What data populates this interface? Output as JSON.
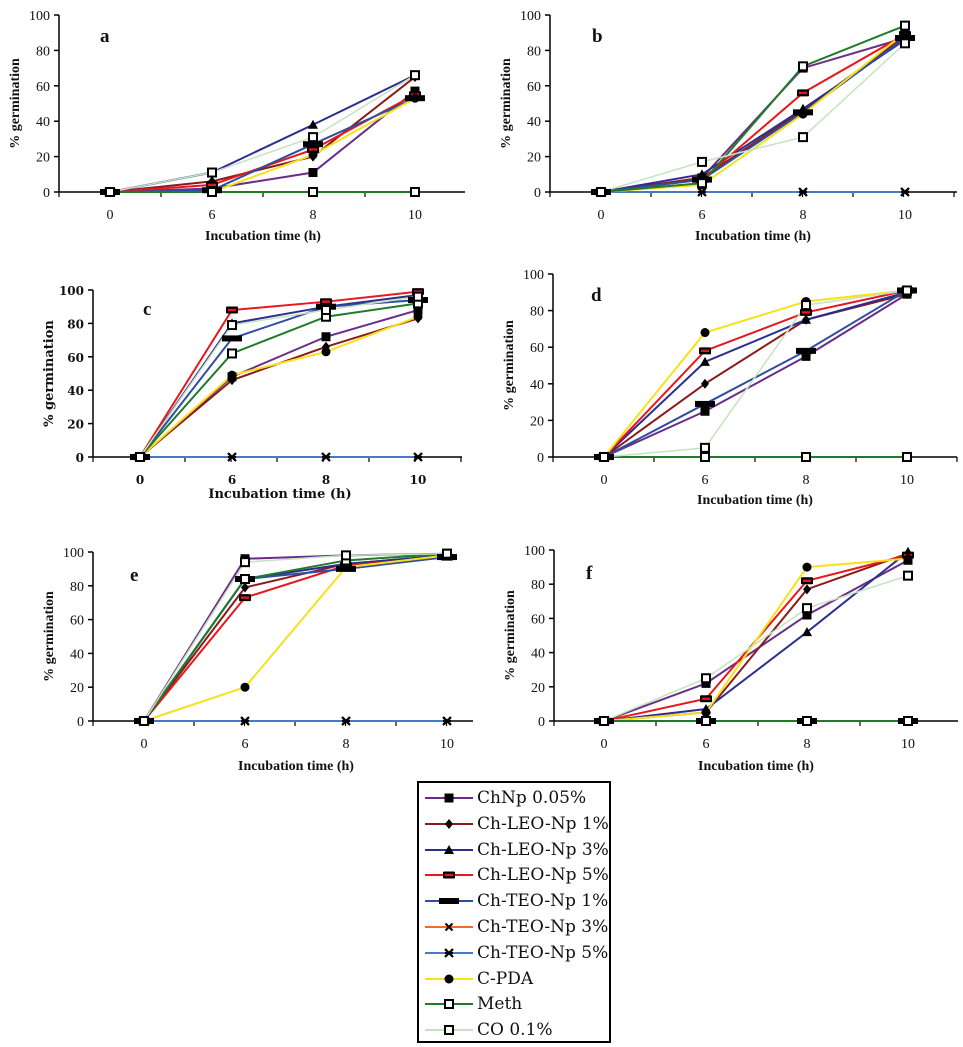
{
  "chart_data": {
    "type": "line",
    "series_styles": [
      {
        "name": "ChNp 0.05%",
        "color": "#6a2c8a",
        "marker": "square"
      },
      {
        "name": "Ch-LEO-Np 1%",
        "color": "#8b1a1a",
        "marker": "diamond"
      },
      {
        "name": "Ch-LEO-Np 3%",
        "color": "#2a2f8f",
        "marker": "triangle"
      },
      {
        "name": "Ch-LEO-Np 5%",
        "color": "#e8171c",
        "marker": "dash"
      },
      {
        "name": "Ch-TEO-Np 1%",
        "color": "#2f4ea0",
        "marker": "bar"
      },
      {
        "name": "Ch-TEO-Np 3%",
        "color": "#f06a2a",
        "marker": "x"
      },
      {
        "name": "Ch-TEO-Np 5%",
        "color": "#4a78c8",
        "marker": "star"
      },
      {
        "name": "C-PDA",
        "color": "#f5e21a",
        "marker": "circle"
      },
      {
        "name": "Meth",
        "color": "#1f7a2a",
        "marker": "open-square"
      },
      {
        "name": "CO 0.1%",
        "color": "#c5e3c0",
        "marker": "open-square"
      }
    ],
    "panels": [
      {
        "label": "a",
        "xlabel": "Incubation time (h)",
        "ylabel": "% germination",
        "categories": [
          "0",
          "6",
          "8",
          "10"
        ],
        "yticks": [
          "0",
          "20",
          "40",
          "60",
          "80",
          "100"
        ],
        "ylim": [
          0,
          100
        ],
        "series": [
          {
            "name": "ChNp 0.05%",
            "values": [
              0,
              2,
              11,
              57
            ]
          },
          {
            "name": "Ch-LEO-Np 1%",
            "values": [
              0,
              6,
              20,
              65
            ]
          },
          {
            "name": "Ch-LEO-Np 3%",
            "values": [
              0,
              11,
              38,
              66
            ]
          },
          {
            "name": "Ch-LEO-Np 5%",
            "values": [
              0,
              4,
              24,
              55
            ]
          },
          {
            "name": "Ch-TEO-Np 1%",
            "values": [
              0,
              1,
              27,
              53
            ]
          },
          {
            "name": "Ch-TEO-Np 3%",
            "values": [
              0,
              0,
              0,
              0
            ]
          },
          {
            "name": "Ch-TEO-Np 5%",
            "values": [
              0,
              0,
              0,
              0
            ]
          },
          {
            "name": "C-PDA",
            "values": [
              0,
              0,
              21,
              53
            ]
          },
          {
            "name": "Meth",
            "values": [
              0,
              0,
              0,
              0
            ]
          },
          {
            "name": "CO 0.1%",
            "values": [
              0,
              11,
              31,
              66
            ]
          }
        ]
      },
      {
        "label": "b",
        "xlabel": "Incubation time (h)",
        "ylabel": "% germination",
        "categories": [
          "0",
          "6",
          "8",
          "10"
        ],
        "yticks": [
          "0",
          "20",
          "40",
          "60",
          "80",
          "100"
        ],
        "ylim": [
          0,
          100
        ],
        "series": [
          {
            "name": "ChNp 0.05%",
            "values": [
              0,
              8,
              70,
              87
            ]
          },
          {
            "name": "Ch-LEO-Np 1%",
            "values": [
              0,
              8,
              46,
              88
            ]
          },
          {
            "name": "Ch-LEO-Np 3%",
            "values": [
              0,
              10,
              47,
              86
            ]
          },
          {
            "name": "Ch-LEO-Np 5%",
            "values": [
              0,
              7,
              56,
              89
            ]
          },
          {
            "name": "Ch-TEO-Np 1%",
            "values": [
              0,
              7,
              45,
              87
            ]
          },
          {
            "name": "Ch-TEO-Np 3%",
            "values": [
              0,
              0,
              0,
              0
            ]
          },
          {
            "name": "Ch-TEO-Np 5%",
            "values": [
              0,
              0,
              0,
              0
            ]
          },
          {
            "name": "C-PDA",
            "values": [
              0,
              4,
              44,
              90
            ]
          },
          {
            "name": "Meth",
            "values": [
              0,
              5,
              71,
              94
            ]
          },
          {
            "name": "CO 0.1%",
            "values": [
              0,
              17,
              31,
              84
            ]
          }
        ]
      },
      {
        "label": "c",
        "xlabel": "Incubation time (h)",
        "ylabel": "% germination",
        "categories": [
          "0",
          "6",
          "8",
          "10"
        ],
        "yticks": [
          "0",
          "20",
          "40",
          "60",
          "80",
          "100"
        ],
        "ylim": [
          0,
          100
        ],
        "series": [
          {
            "name": "ChNp 0.05%",
            "values": [
              0,
              48,
              72,
              88
            ]
          },
          {
            "name": "Ch-LEO-Np 1%",
            "values": [
              0,
              46,
              66,
              83
            ]
          },
          {
            "name": "Ch-LEO-Np 3%",
            "values": [
              0,
              80,
              90,
              97
            ]
          },
          {
            "name": "Ch-LEO-Np 5%",
            "values": [
              0,
              88,
              93,
              99
            ]
          },
          {
            "name": "Ch-TEO-Np 1%",
            "values": [
              0,
              71,
              90,
              94
            ]
          },
          {
            "name": "Ch-TEO-Np 3%",
            "values": [
              0,
              0,
              0,
              0
            ]
          },
          {
            "name": "Ch-TEO-Np 5%",
            "values": [
              0,
              0,
              0,
              0
            ]
          },
          {
            "name": "C-PDA",
            "values": [
              0,
              49,
              63,
              84
            ]
          },
          {
            "name": "Meth",
            "values": [
              0,
              62,
              84,
              92
            ]
          },
          {
            "name": "CO 0.1%",
            "values": [
              0,
              79,
              88,
              96
            ]
          }
        ]
      },
      {
        "label": "d",
        "xlabel": "Incubation time (h)",
        "ylabel": "% germination",
        "categories": [
          "0",
          "6",
          "8",
          "10"
        ],
        "yticks": [
          "0",
          "20",
          "40",
          "60",
          "80",
          "100"
        ],
        "ylim": [
          0,
          100
        ],
        "series": [
          {
            "name": "ChNp 0.05%",
            "values": [
              0,
              25,
              55,
              89
            ]
          },
          {
            "name": "Ch-LEO-Np 1%",
            "values": [
              0,
              40,
              75,
              89
            ]
          },
          {
            "name": "Ch-LEO-Np 3%",
            "values": [
              0,
              52,
              75,
              90
            ]
          },
          {
            "name": "Ch-LEO-Np 5%",
            "values": [
              0,
              58,
              79,
              91
            ]
          },
          {
            "name": "Ch-TEO-Np 1%",
            "values": [
              0,
              29,
              58,
              91
            ]
          },
          {
            "name": "Ch-TEO-Np 3%",
            "values": [
              0,
              0,
              0,
              0
            ]
          },
          {
            "name": "Ch-TEO-Np 5%",
            "values": [
              0,
              0,
              0,
              0
            ]
          },
          {
            "name": "C-PDA",
            "values": [
              0,
              68,
              85,
              91
            ]
          },
          {
            "name": "Meth",
            "values": [
              0,
              0,
              0,
              0
            ]
          },
          {
            "name": "CO 0.1%",
            "values": [
              0,
              5,
              83,
              91
            ]
          }
        ]
      },
      {
        "label": "e",
        "xlabel": "Incubation time (h)",
        "ylabel": "% germination",
        "categories": [
          "0",
          "6",
          "8",
          "10"
        ],
        "yticks": [
          "0",
          "20",
          "40",
          "60",
          "80",
          "100"
        ],
        "ylim": [
          0,
          100
        ],
        "series": [
          {
            "name": "ChNp 0.05%",
            "values": [
              0,
              96,
              98,
              99
            ]
          },
          {
            "name": "Ch-LEO-Np 1%",
            "values": [
              0,
              79,
              93,
              98
            ]
          },
          {
            "name": "Ch-LEO-Np 3%",
            "values": [
              0,
              84,
              93,
              98
            ]
          },
          {
            "name": "Ch-LEO-Np 5%",
            "values": [
              0,
              73,
              92,
              97
            ]
          },
          {
            "name": "Ch-TEO-Np 1%",
            "values": [
              0,
              84,
              90,
              97
            ]
          },
          {
            "name": "Ch-TEO-Np 3%",
            "values": [
              0,
              0,
              0,
              0
            ]
          },
          {
            "name": "Ch-TEO-Np 5%",
            "values": [
              0,
              0,
              0,
              0
            ]
          },
          {
            "name": "C-PDA",
            "values": [
              0,
              20,
              91,
              98
            ]
          },
          {
            "name": "Meth",
            "values": [
              0,
              84,
              95,
              99
            ]
          },
          {
            "name": "CO 0.1%",
            "values": [
              0,
              94,
              98,
              99
            ]
          }
        ]
      },
      {
        "label": "f",
        "xlabel": "Incubation time (h)",
        "ylabel": "% germination",
        "categories": [
          "0",
          "6",
          "8",
          "10"
        ],
        "yticks": [
          "0",
          "20",
          "40",
          "60",
          "80",
          "100"
        ],
        "ylim": [
          0,
          100
        ],
        "series": [
          {
            "name": "ChNp 0.05%",
            "values": [
              0,
              22,
              62,
              94
            ]
          },
          {
            "name": "Ch-LEO-Np 1%",
            "values": [
              0,
              5,
              77,
              98
            ]
          },
          {
            "name": "Ch-LEO-Np 3%",
            "values": [
              0,
              7,
              52,
              99
            ]
          },
          {
            "name": "Ch-LEO-Np 5%",
            "values": [
              0,
              13,
              82,
              97
            ]
          },
          {
            "name": "Ch-TEO-Np 1%",
            "values": [
              0,
              0,
              0,
              0
            ]
          },
          {
            "name": "Ch-TEO-Np 3%",
            "values": [
              0,
              0,
              0,
              0
            ]
          },
          {
            "name": "Ch-TEO-Np 5%",
            "values": [
              0,
              0,
              0,
              0
            ]
          },
          {
            "name": "C-PDA",
            "values": [
              0,
              5,
              90,
              95
            ]
          },
          {
            "name": "Meth",
            "values": [
              0,
              0,
              0,
              0
            ]
          },
          {
            "name": "CO 0.1%",
            "values": [
              0,
              25,
              66,
              85
            ]
          }
        ]
      }
    ],
    "legend": {
      "position": "bottom-center",
      "entries": [
        "ChNp 0.05%",
        "Ch-LEO-Np 1%",
        "Ch-LEO-Np 3%",
        "Ch-LEO-Np 5%",
        "Ch-TEO-Np 1%",
        "Ch-TEO-Np 3%",
        "Ch-TEO-Np 5%",
        "C-PDA",
        "Meth",
        "CO 0.1%"
      ]
    },
    "grid": false
  }
}
